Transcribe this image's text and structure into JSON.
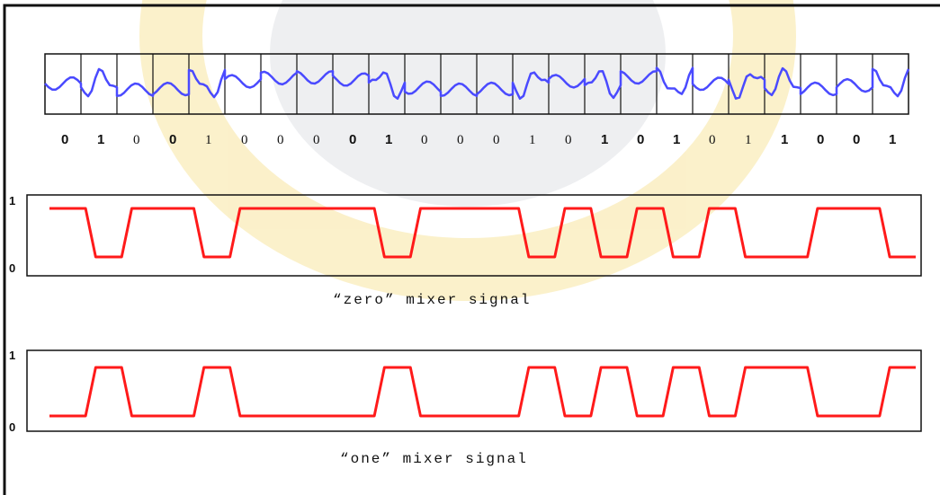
{
  "bits": [
    {
      "label": "0",
      "bold": true
    },
    {
      "label": "1",
      "bold": true
    },
    {
      "label": "0",
      "bold": false
    },
    {
      "label": "0",
      "bold": true
    },
    {
      "label": "1",
      "bold": false
    },
    {
      "label": "0",
      "bold": false
    },
    {
      "label": "0",
      "bold": false
    },
    {
      "label": "0",
      "bold": false
    },
    {
      "label": "0",
      "bold": true
    },
    {
      "label": "1",
      "bold": true
    },
    {
      "label": "0",
      "bold": false
    },
    {
      "label": "0",
      "bold": false
    },
    {
      "label": "0",
      "bold": false
    },
    {
      "label": "1",
      "bold": false
    },
    {
      "label": "0",
      "bold": false
    },
    {
      "label": "1",
      "bold": true
    },
    {
      "label": "0",
      "bold": true
    },
    {
      "label": "1",
      "bold": true
    },
    {
      "label": "0",
      "bold": false
    },
    {
      "label": "1",
      "bold": false
    },
    {
      "label": "1",
      "bold": true
    },
    {
      "label": "0",
      "bold": true
    },
    {
      "label": "0",
      "bold": true
    },
    {
      "label": "1",
      "bold": true
    }
  ],
  "zero_mixer": {
    "caption": "“zero” mixer signal",
    "axis_high": "1",
    "axis_low": "0",
    "color": "#ff1a1a"
  },
  "one_mixer": {
    "caption": "“one” mixer signal",
    "axis_high": "1",
    "axis_low": "0",
    "color": "#ff1a1a"
  },
  "waveform_color": "#4a4aff"
}
